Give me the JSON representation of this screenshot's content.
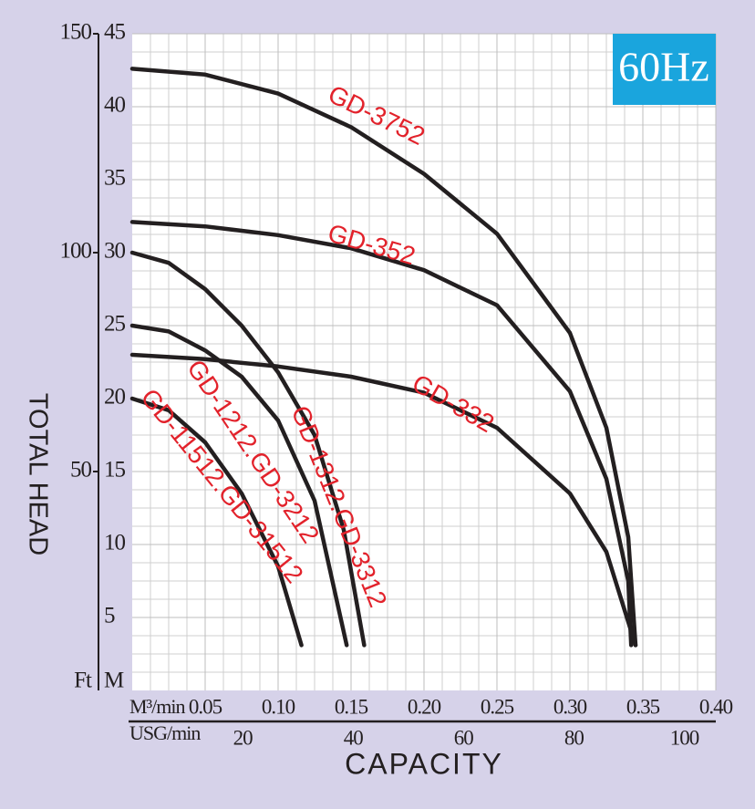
{
  "chart_data": {
    "type": "line",
    "badge": "60Hz",
    "xlabel": "CAPACITY",
    "ylabel": "TOTAL HEAD",
    "x_unit": "M³/min",
    "x2_unit": "USG/min",
    "y_unit": "M",
    "y2_unit": "Ft",
    "xlim": [
      0,
      0.4
    ],
    "xticks": [
      {
        "value": 0.05,
        "label": "0.05"
      },
      {
        "value": 0.1,
        "label": "0.10"
      },
      {
        "value": 0.15,
        "label": "0.15"
      },
      {
        "value": 0.2,
        "label": "0.20"
      },
      {
        "value": 0.25,
        "label": "0.25"
      },
      {
        "value": 0.3,
        "label": "0.30"
      },
      {
        "value": 0.35,
        "label": "0.35"
      },
      {
        "value": 0.4,
        "label": "0.40"
      }
    ],
    "x2lim": [
      0,
      105.7
    ],
    "x2ticks": [
      20,
      40,
      60,
      80,
      100
    ],
    "ylim": [
      0,
      45
    ],
    "yticks": [
      5,
      10,
      15,
      20,
      25,
      30,
      35,
      40,
      45
    ],
    "y2lim": [
      0,
      150
    ],
    "y2ticks": [
      50,
      100,
      150
    ],
    "grid": true,
    "series": [
      {
        "name": "GD-3752",
        "color": "#231f20",
        "x": [
          0,
          0.05,
          0.1,
          0.15,
          0.2,
          0.25,
          0.3,
          0.325,
          0.34,
          0.345
        ],
        "values": [
          42.6,
          42.2,
          40.9,
          38.6,
          35.4,
          31.3,
          24.5,
          18,
          10.5,
          3.1
        ]
      },
      {
        "name": "GD-352",
        "color": "#231f20",
        "x": [
          0,
          0.05,
          0.1,
          0.15,
          0.2,
          0.25,
          0.3,
          0.325,
          0.34,
          0.342
        ],
        "values": [
          32.1,
          31.8,
          31.2,
          30.3,
          28.8,
          26.4,
          20.5,
          14.5,
          7.5,
          3.1
        ]
      },
      {
        "name": "GD-332",
        "color": "#231f20",
        "x": [
          0,
          0.05,
          0.1,
          0.15,
          0.2,
          0.25,
          0.3,
          0.325,
          0.345
        ],
        "values": [
          23,
          22.7,
          22.2,
          21.5,
          20.4,
          18,
          13.5,
          9.5,
          3.1
        ]
      },
      {
        "name": "GD-1312.GD-3312",
        "color": "#231f20",
        "x": [
          0,
          0.025,
          0.05,
          0.075,
          0.1,
          0.125,
          0.145,
          0.159
        ],
        "values": [
          30,
          29.3,
          27.5,
          25,
          21.8,
          17.5,
          11,
          3.1
        ]
      },
      {
        "name": "GD-1212.GD-3212",
        "color": "#231f20",
        "x": [
          0,
          0.025,
          0.05,
          0.075,
          0.1,
          0.125,
          0.147
        ],
        "values": [
          25,
          24.6,
          23.3,
          21.5,
          18.5,
          13,
          3.1
        ]
      },
      {
        "name": "GD-11512.GD-31512",
        "color": "#231f20",
        "x": [
          0,
          0.025,
          0.05,
          0.075,
          0.1,
          0.116
        ],
        "values": [
          20,
          19.2,
          17,
          13.5,
          8.5,
          3.1
        ]
      }
    ]
  }
}
